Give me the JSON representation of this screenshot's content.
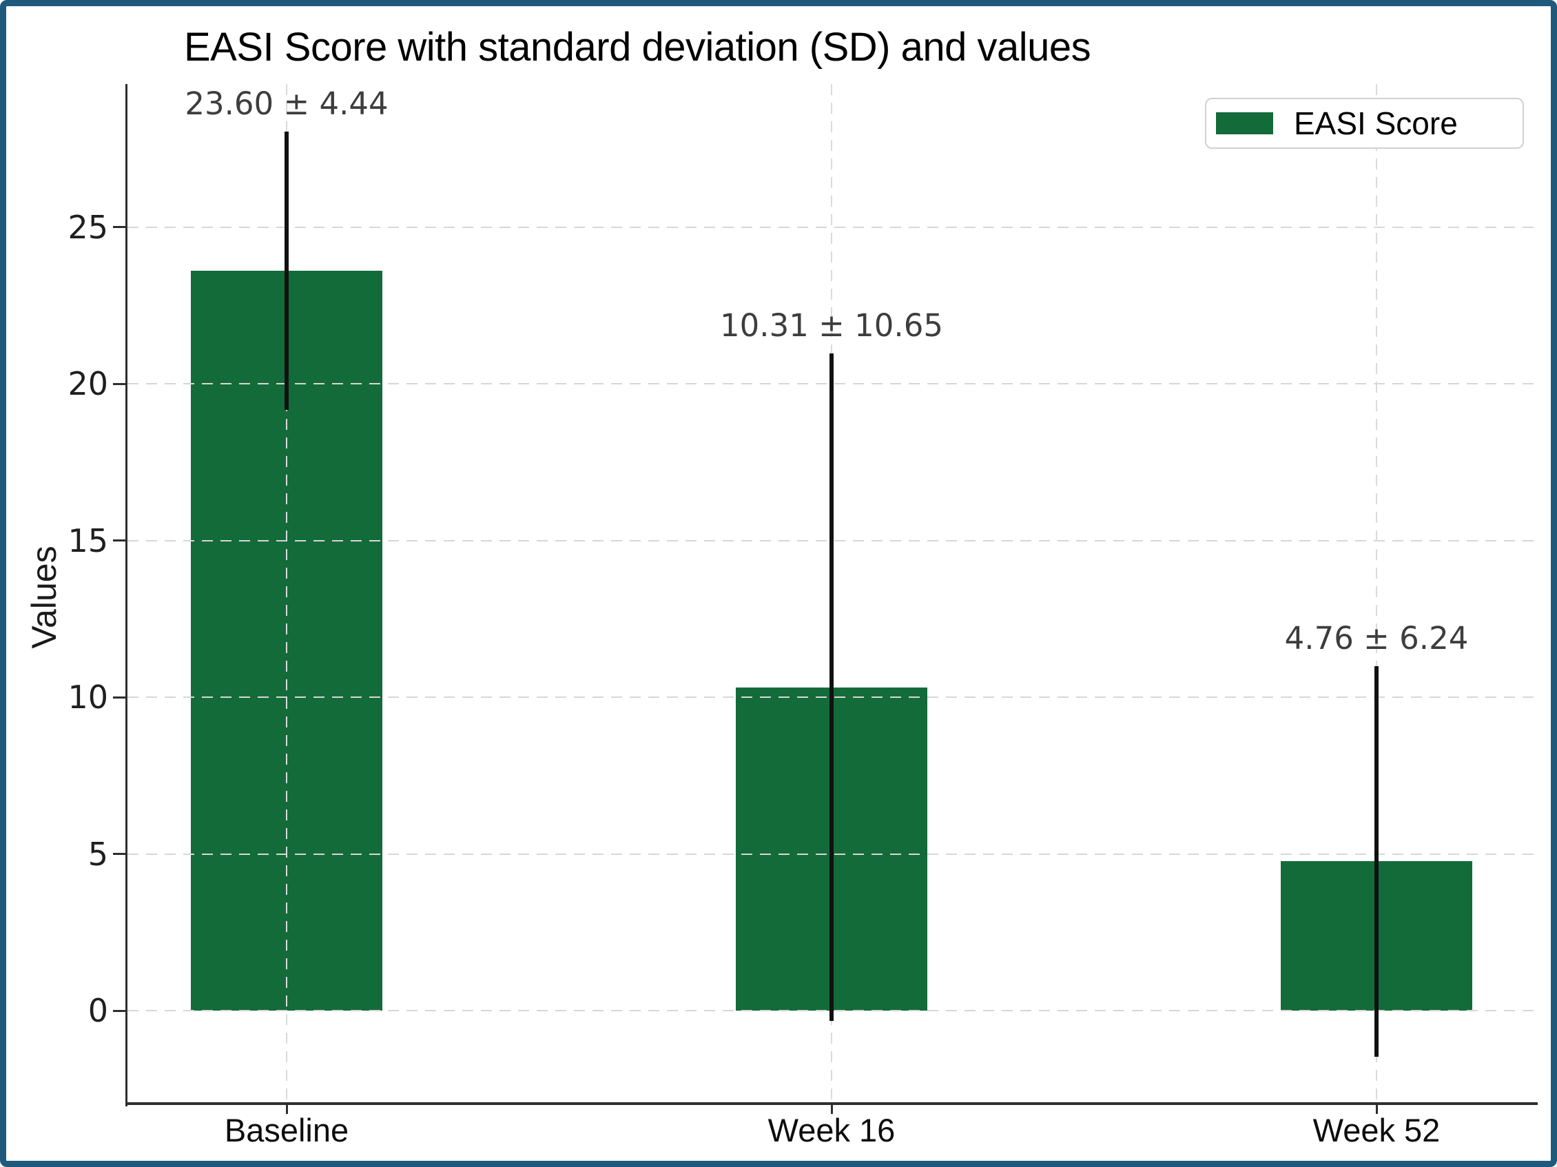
{
  "figure": {
    "border_color": "#1f5a7d",
    "background_color": "#ffffff"
  },
  "chart_data": {
    "type": "bar",
    "title": "EASI Score with standard deviation (SD) and values",
    "xlabel": "",
    "ylabel": "Values",
    "categories": [
      "Baseline",
      "Week 16",
      "Week 52"
    ],
    "series": [
      {
        "name": "EASI Score",
        "values": [
          23.6,
          10.31,
          4.76
        ],
        "sd": [
          4.44,
          10.65,
          6.24
        ]
      }
    ],
    "annotations": [
      "23.60 ± 4.44",
      "10.31 ± 10.65",
      "4.76 ± 6.24"
    ],
    "ytick_values": [
      0,
      5,
      10,
      15,
      20,
      25
    ],
    "ytick_labels": [
      "0",
      "5",
      "10",
      "15",
      "20",
      "25"
    ],
    "ylim": [
      -3.0,
      29.6
    ],
    "grid": true,
    "grid_style": "dashed",
    "legend": {
      "label": "EASI Score",
      "position": "upper right"
    },
    "bar_color": "#146b3a",
    "errorbar_color": "#111111",
    "annotation_color": "#3d3d3d"
  }
}
